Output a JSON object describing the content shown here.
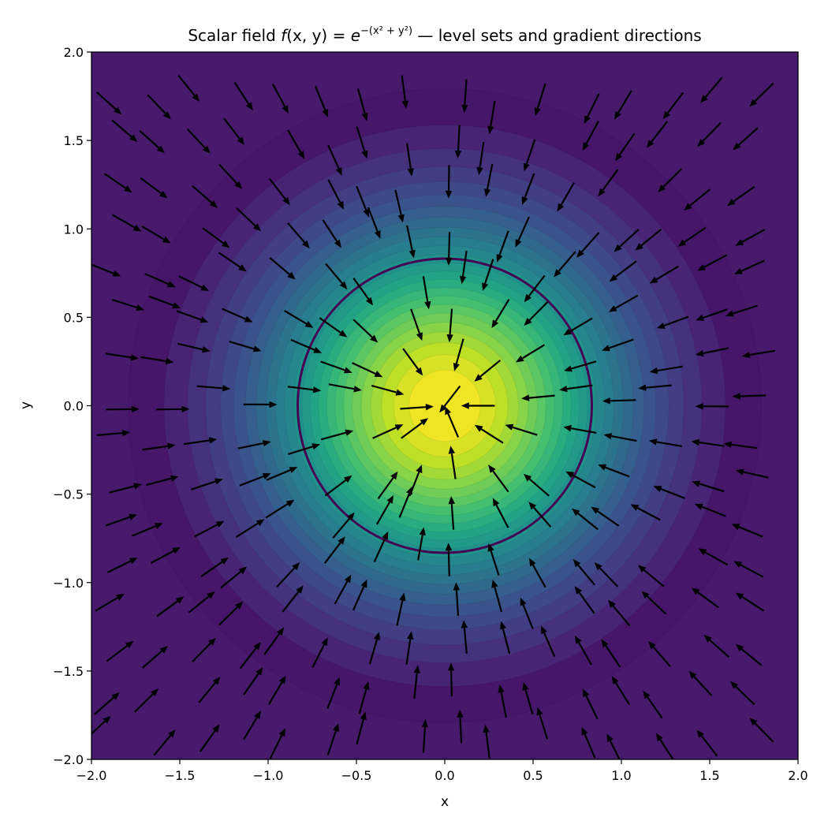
{
  "chart_data": {
    "type": "contour",
    "title": {
      "prefix": "Scalar field ",
      "f": "f",
      "args": "(x, y)",
      "eq": " = ",
      "base": "e",
      "exponent": "−(x² + y²)",
      "suffix": " — level sets and gradient directions"
    },
    "xlabel": "x",
    "ylabel": "y",
    "xlim": [
      -2.0,
      2.0
    ],
    "ylim": [
      -2.0,
      2.0
    ],
    "xticks": [
      -2.0,
      -1.5,
      -1.0,
      -0.5,
      0.0,
      0.5,
      1.0,
      1.5,
      2.0
    ],
    "yticks": [
      -2.0,
      -1.5,
      -1.0,
      -0.5,
      0.0,
      0.5,
      1.0,
      1.5,
      2.0
    ],
    "xtick_labels": [
      "−2.0",
      "−1.5",
      "−1.0",
      "−0.5",
      "0.0",
      "0.5",
      "1.0",
      "1.5",
      "2.0"
    ],
    "ytick_labels": [
      "−2.0",
      "−1.5",
      "−1.0",
      "−0.5",
      "0.0",
      "0.5",
      "1.0",
      "1.5",
      "2.0"
    ],
    "function": "exp(-(x^2 + y^2))",
    "colormap": "viridis",
    "filled_levels": [
      0.04,
      0.08,
      0.12,
      0.16,
      0.2,
      0.24,
      0.28,
      0.32,
      0.36,
      0.4,
      0.44,
      0.48,
      0.52,
      0.56,
      0.6,
      0.64,
      0.68,
      0.72,
      0.76,
      0.8,
      0.84,
      0.88,
      0.92,
      0.96
    ],
    "highlighted_level": {
      "value": 0.5,
      "radius": 0.8326,
      "color": "#440154"
    },
    "quiver": {
      "field": "gradient direction",
      "grid": [
        -1.95,
        -1.7,
        -1.45,
        -1.2,
        -0.95,
        -0.7,
        -0.45,
        -0.2,
        0.05,
        0.3,
        0.55,
        0.8,
        1.05,
        1.3,
        1.55,
        1.8
      ],
      "jitter": 0.08,
      "length": 0.17,
      "color": "#000000"
    },
    "grid": false,
    "legend": "none"
  }
}
